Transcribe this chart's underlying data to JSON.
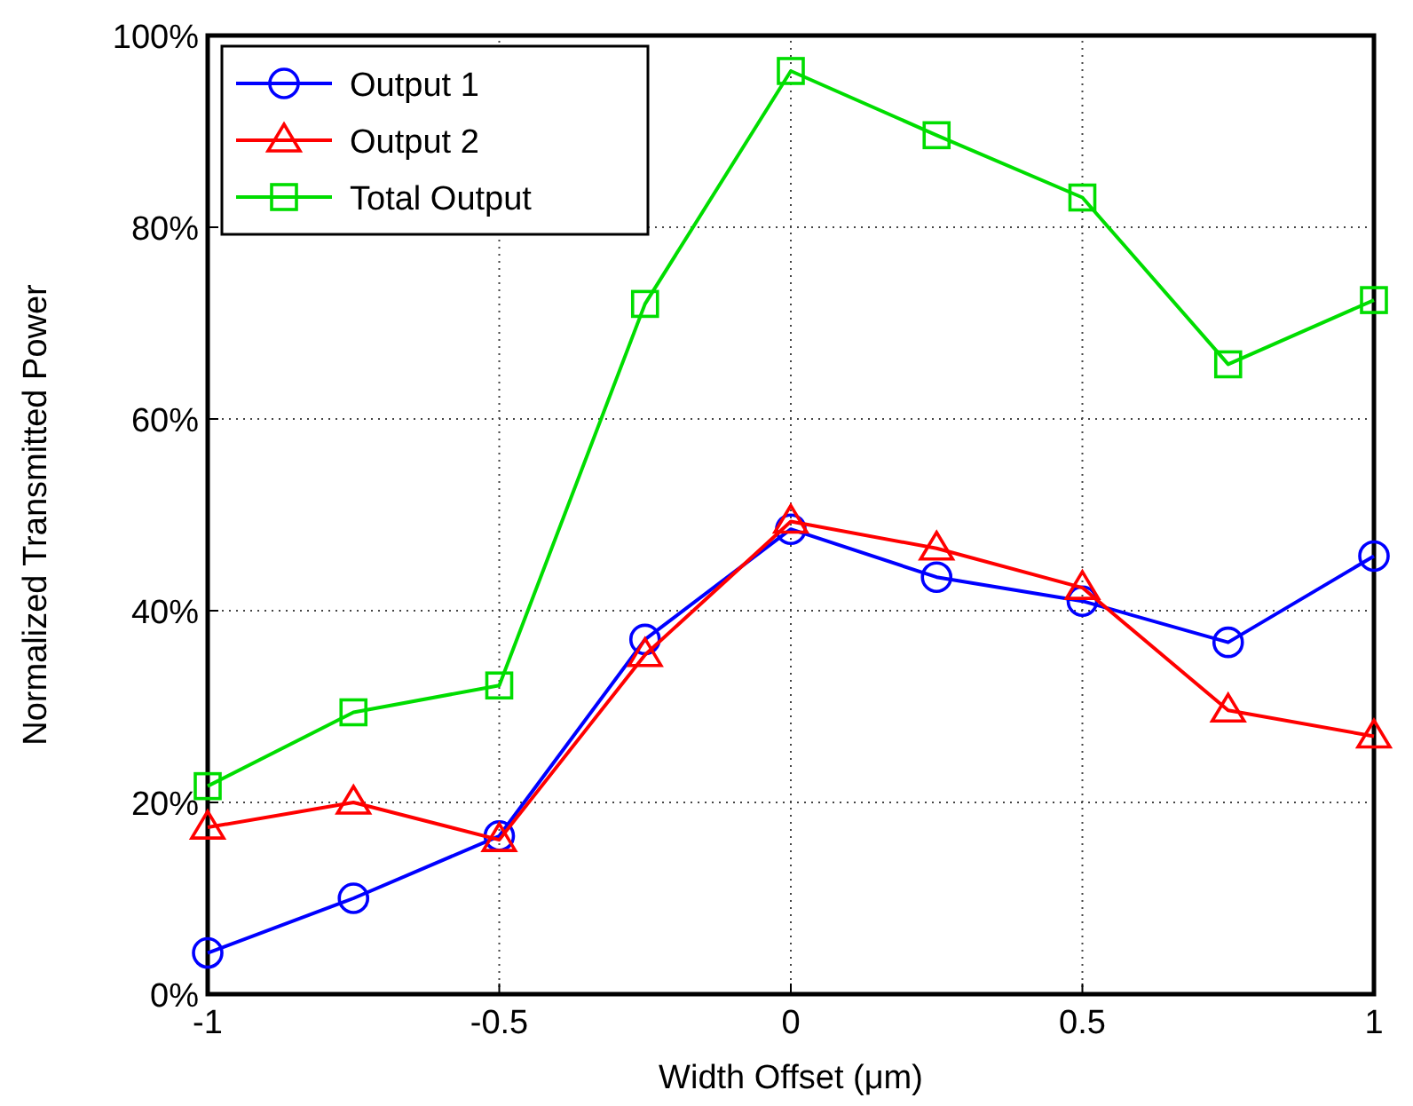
{
  "chart_data": {
    "type": "line",
    "xlabel": "Width Offset (μm)",
    "ylabel": "Normalized Transmitted Power",
    "x": [
      -1,
      -0.75,
      -0.5,
      -0.25,
      0,
      0.25,
      0.5,
      0.75,
      1
    ],
    "series": [
      {
        "name": "Output 1",
        "color": "#0000ff",
        "marker": "circle",
        "values": [
          4.3,
          10,
          16.5,
          37,
          48.5,
          43.5,
          41,
          36.7,
          45.7
        ]
      },
      {
        "name": "Output 2",
        "color": "#ff0000",
        "marker": "triangle",
        "values": [
          17.4,
          20,
          16.1,
          35.4,
          49.3,
          46.5,
          42.4,
          29.6,
          26.9
        ]
      },
      {
        "name": "Total Output",
        "color": "#00dd00",
        "marker": "square",
        "values": [
          21.7,
          29.4,
          32.2,
          72,
          96.3,
          89.6,
          83.1,
          65.7,
          72.4
        ]
      }
    ],
    "xlim": [
      -1,
      1
    ],
    "xticks": [
      -1,
      -0.5,
      0,
      0.5,
      1
    ],
    "ylim": [
      0,
      100
    ],
    "yticks": [
      {
        "value": 0,
        "label": "0%"
      },
      {
        "value": 20,
        "label": "20%"
      },
      {
        "value": 40,
        "label": "40%"
      },
      {
        "value": 60,
        "label": "60%"
      },
      {
        "value": 80,
        "label": "80%"
      },
      {
        "value": 100,
        "label": "100%"
      }
    ],
    "grid": true,
    "legend": "top left",
    "line_style": "solid"
  }
}
